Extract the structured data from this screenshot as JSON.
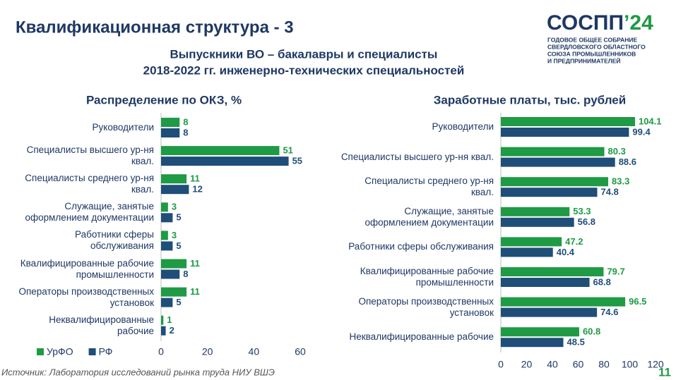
{
  "slide": {
    "title": "Квалификационная структура - 3",
    "subtitle": [
      "Выпускники ВО – бакалавры и специалисты",
      "2018-2022 гг. инженерно-технических специальностей"
    ],
    "source": "Источник: Лаборатория исследований рынка труда НИУ ВШЭ",
    "page": "11"
  },
  "logo": {
    "name": "СОСПП",
    "year": "’24",
    "lines": [
      "ГОДОВОЕ ОБЩЕЕ СОБРАНИЕ",
      "СВЕРДЛОВСКОГО ОБЛАСТНОГО",
      "СОЮЗА ПРОМЫШЛЕННИКОВ",
      "И ПРЕДПРИНИМАТЕЛЕЙ"
    ]
  },
  "chart_data": [
    {
      "type": "hbar",
      "title": "Распределение по ОКЗ, %",
      "categories": [
        "Руководители",
        "Специалисты высшего ур-ня квал.",
        "Специалисты среднего ур-ня квал.",
        "Служащие, занятые оформлением документации",
        "Работники сферы обслуживания",
        "Квалифицированные рабочие промышленности",
        "Операторы производственных установок",
        "Неквалифицированные рабочие"
      ],
      "series": [
        {
          "name": "УрФО",
          "color": "#1f9a45",
          "values": [
            8,
            51,
            11,
            3,
            3,
            11,
            11,
            1
          ]
        },
        {
          "name": "РФ",
          "color": "#1f4e79",
          "values": [
            8,
            55,
            12,
            5,
            5,
            8,
            5,
            2
          ]
        }
      ],
      "xlim": [
        0,
        60
      ],
      "xticks": [
        0,
        20,
        40,
        60
      ],
      "legend": "bottom-left"
    },
    {
      "type": "hbar",
      "title": "Заработные платы, тыс. рублей",
      "categories": [
        "Руководители",
        "Специалисты высшего ур-ня квал.",
        "Специалисты среднего ур-ня квал.",
        "Служащие, занятые оформлением документации",
        "Работники сферы обслуживания",
        "Квалифицированные рабочие промышленности",
        "Операторы производственных установок",
        "Неквалифицированные рабочие"
      ],
      "series": [
        {
          "color": "#1f9a45",
          "values": [
            104.1,
            80.3,
            83.3,
            53.3,
            47.2,
            79.7,
            96.5,
            60.8
          ]
        },
        {
          "color": "#1f4e79",
          "values": [
            99.4,
            88.6,
            74.8,
            56.8,
            40.4,
            68.8,
            74.6,
            48.5
          ]
        }
      ],
      "xlim": [
        0,
        120
      ],
      "xticks": [
        0,
        20,
        40,
        60,
        80,
        100,
        120
      ]
    }
  ]
}
